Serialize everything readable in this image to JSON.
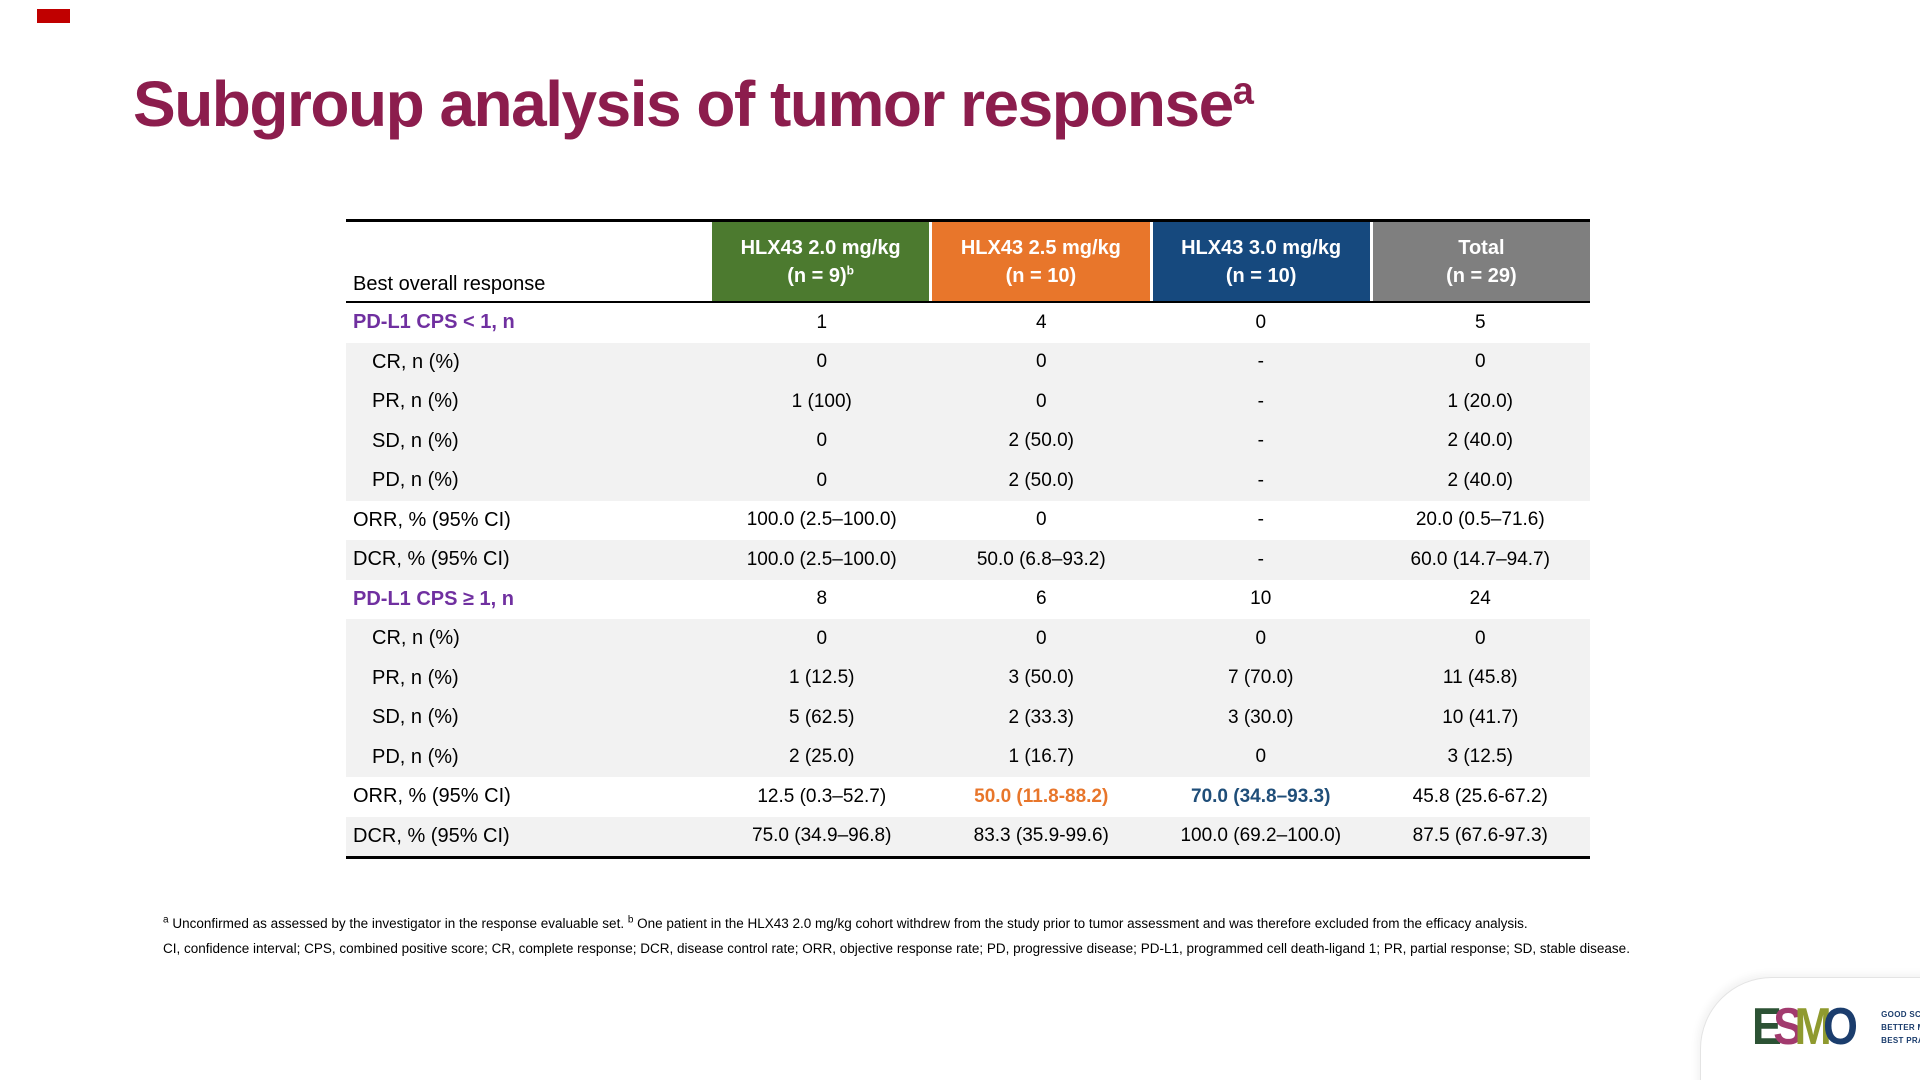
{
  "accent": {
    "color": "#C00000"
  },
  "title": {
    "text": "Subgroup analysis of tumor response",
    "superscript": "a",
    "color": "#8C1D4D"
  },
  "table": {
    "row_header_label": "Best overall response",
    "columns": [
      {
        "line1": "HLX43 2.0 mg/kg",
        "line2": "(n = 9)",
        "line2_sup": "b",
        "color": "#4C7A2F"
      },
      {
        "line1": "HLX43 2.5 mg/kg",
        "line2": "(n = 10)",
        "line2_sup": "",
        "color": "#E8762B"
      },
      {
        "line1": "HLX43 3.0 mg/kg",
        "line2": "(n = 10)",
        "line2_sup": "",
        "color": "#16497E"
      },
      {
        "line1": "Total",
        "line2": "(n = 29)",
        "line2_sup": "",
        "color": "#7F7F7F"
      }
    ],
    "section_label_color": "#7030A0",
    "shade_color": "#F2F2F2",
    "highlight_palette": {
      "orange": "#E8762B",
      "blue": "#1F4E79"
    },
    "rows": [
      {
        "label": "PD-L1 CPS < 1, n",
        "type": "section",
        "shaded": false,
        "values": [
          "1",
          "4",
          "0",
          "5"
        ]
      },
      {
        "label": "CR, n (%)",
        "type": "sub",
        "shaded": true,
        "values": [
          "0",
          "0",
          "-",
          "0"
        ]
      },
      {
        "label": "PR, n (%)",
        "type": "sub",
        "shaded": true,
        "values": [
          "1 (100)",
          "0",
          "-",
          "1 (20.0)"
        ]
      },
      {
        "label": "SD, n (%)",
        "type": "sub",
        "shaded": true,
        "values": [
          "0",
          "2 (50.0)",
          "-",
          "2 (40.0)"
        ]
      },
      {
        "label": "PD, n (%)",
        "type": "sub",
        "shaded": true,
        "values": [
          "0",
          "2 (50.0)",
          "-",
          "2 (40.0)"
        ]
      },
      {
        "label": "ORR, % (95% CI)",
        "type": "stat",
        "shaded": false,
        "values": [
          "100.0 (2.5–100.0)",
          "0",
          "-",
          "20.0 (0.5–71.6)"
        ]
      },
      {
        "label": "DCR, % (95% CI)",
        "type": "stat",
        "shaded": true,
        "values": [
          "100.0 (2.5–100.0)",
          "50.0 (6.8–93.2)",
          "-",
          "60.0 (14.7–94.7)"
        ]
      },
      {
        "label": "PD-L1 CPS ≥ 1, n",
        "type": "section",
        "shaded": false,
        "values": [
          "8",
          "6",
          "10",
          "24"
        ]
      },
      {
        "label": "CR, n (%)",
        "type": "sub",
        "shaded": true,
        "values": [
          "0",
          "0",
          "0",
          "0"
        ]
      },
      {
        "label": "PR, n (%)",
        "type": "sub",
        "shaded": true,
        "values": [
          "1 (12.5)",
          "3 (50.0)",
          "7 (70.0)",
          "11 (45.8)"
        ]
      },
      {
        "label": "SD, n (%)",
        "type": "sub",
        "shaded": true,
        "values": [
          "5 (62.5)",
          "2 (33.3)",
          "3 (30.0)",
          "10 (41.7)"
        ]
      },
      {
        "label": "PD, n (%)",
        "type": "sub",
        "shaded": true,
        "values": [
          "2 (25.0)",
          "1 (16.7)",
          "0",
          "3 (12.5)"
        ]
      },
      {
        "label": "ORR, % (95% CI)",
        "type": "stat",
        "shaded": false,
        "values": [
          "12.5 (0.3–52.7)",
          "50.0 (11.8-88.2)",
          "70.0 (34.8–93.3)",
          "45.8 (25.6-67.2)"
        ],
        "value_styles": [
          null,
          "orange",
          "blue",
          null
        ]
      },
      {
        "label": "DCR, % (95% CI)",
        "type": "stat",
        "shaded": true,
        "values": [
          "75.0 (34.9–96.8)",
          "83.3 (35.9-99.6)",
          "100.0 (69.2–100.0)",
          "87.5 (67.6-97.3)"
        ]
      }
    ]
  },
  "footnotes": {
    "f1_sup_a": "a",
    "f1_text1": " Unconfirmed as assessed by the investigator in the response evaluable set. ",
    "f1_sup_b": "b",
    "f1_text2": " One patient in the HLX43 2.0 mg/kg cohort withdrew from the study prior to tumor assessment and was therefore excluded from the efficacy analysis.",
    "line2": "CI, confidence interval; CPS, combined positive score; CR, complete response; DCR, disease control rate; ORR, objective response rate; PD, progressive disease; PD-L1, programmed cell death-ligand 1; PR, partial response; SD, stable disease."
  },
  "logo": {
    "letters": [
      {
        "char": "E",
        "color": "#2C5234"
      },
      {
        "char": "S",
        "color": "#A23A6E"
      },
      {
        "char": "M",
        "color": "#8F9A2F"
      },
      {
        "char": "O",
        "color": "#1B3D6D"
      }
    ],
    "tagline": [
      "GOOD SCIENCE",
      "BETTER MEDICINE",
      "BEST PRACTICE"
    ],
    "tagline_color": "#1B3D6D"
  }
}
